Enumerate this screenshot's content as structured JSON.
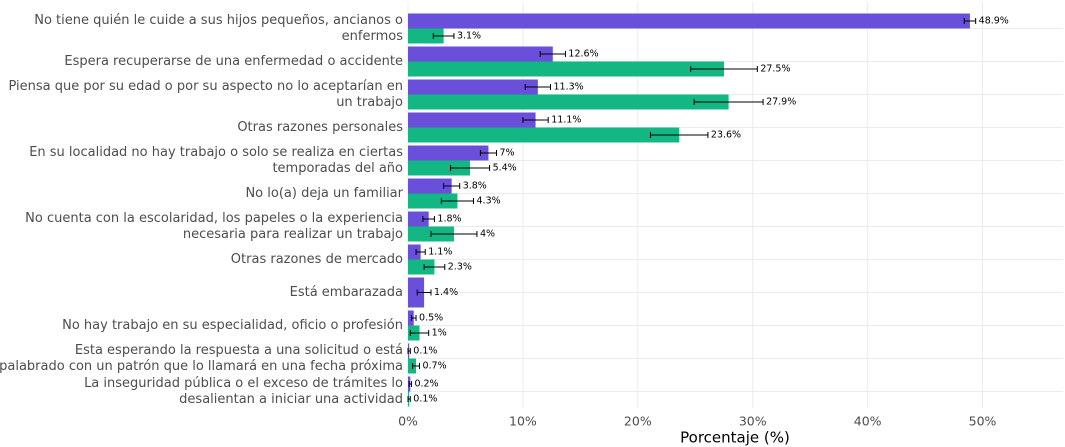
{
  "chart_data": {
    "type": "bar",
    "orientation": "horizontal",
    "categories": [
      [
        "No tiene quién le cuide a sus hijos pequeños, ancianos o",
        "enfermos"
      ],
      [
        "Espera recuperarse de una enfermedad o accidente"
      ],
      [
        "Piensa que por su edad o por su aspecto no lo aceptarían en",
        "un trabajo"
      ],
      [
        "Otras razones personales"
      ],
      [
        "En su localidad no hay trabajo o solo se realiza en ciertas",
        "temporadas del año"
      ],
      [
        "No lo(a) deja un familiar"
      ],
      [
        "No cuenta con la escolaridad, los papeles o la experiencia",
        "necesaria para realizar un trabajo"
      ],
      [
        "Otras razones de mercado"
      ],
      [
        "Está embarazada"
      ],
      [
        "No hay trabajo en su especialidad, oficio o profesión"
      ],
      [
        "Esta esperando la respuesta a una solicitud o está",
        "apalabrado con un patrón que lo llamará en una fecha próxima"
      ],
      [
        "La inseguridad pública o el exceso de trámites lo",
        "desalientan a iniciar una actividad"
      ]
    ],
    "series": [
      {
        "color": "#6a4fdb",
        "values": [
          48.9,
          12.6,
          11.3,
          11.1,
          7,
          3.8,
          1.8,
          1.1,
          1.4,
          0.5,
          0.1,
          0.2
        ],
        "errors": [
          0.5,
          1.1,
          1.1,
          1.1,
          0.7,
          0.7,
          0.5,
          0.4,
          0.6,
          0.2,
          0.1,
          0.1
        ],
        "value_labels": [
          "48.9%",
          "12.6%",
          "11.3%",
          "11.1%",
          "7%",
          "3.8%",
          "1.8%",
          "1.1%",
          "1.4%",
          "0.5%",
          "0.1%",
          "0.2%"
        ]
      },
      {
        "color": "#13b783",
        "values": [
          3.1,
          27.5,
          27.9,
          23.6,
          5.4,
          4.3,
          4,
          2.3,
          null,
          1,
          0.7,
          0.1
        ],
        "errors": [
          0.9,
          2.9,
          3,
          2.5,
          1.7,
          1.4,
          2,
          0.9,
          null,
          0.8,
          0.3,
          0.1
        ],
        "value_labels": [
          "3.1%",
          "27.5%",
          "27.9%",
          "23.6%",
          "5.4%",
          "4.3%",
          "4%",
          "2.3%",
          null,
          "1%",
          "0.7%",
          "0.1%"
        ]
      }
    ],
    "xlabel": "Porcentaje (%)",
    "xlim": [
      0,
      57
    ],
    "xticks": [
      {
        "value": 0,
        "label": "0%"
      },
      {
        "value": 10,
        "label": "10%"
      },
      {
        "value": 20,
        "label": "20%"
      },
      {
        "value": 30,
        "label": "30%"
      },
      {
        "value": 40,
        "label": "40%"
      },
      {
        "value": 50,
        "label": "50%"
      }
    ],
    "grid": true
  }
}
